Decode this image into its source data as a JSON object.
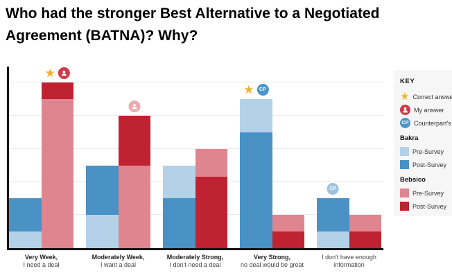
{
  "title": {
    "line1": "Who had the stronger Best Alternative to a Negotiated",
    "line2": "Agreement (BATNA)? Why?"
  },
  "legend": {
    "title": "KEY",
    "answer_markers": [
      {
        "icon": "star-icon",
        "label": "Correct answer",
        "color": "#f2b02c"
      },
      {
        "icon": "my-answer-icon",
        "label": "My answer",
        "color": "#cf3a46"
      },
      {
        "icon": "counterpart-icon",
        "label": "Counterpart's",
        "color": "#4e95c8"
      }
    ],
    "teams": [
      {
        "name": "Bakra",
        "items": [
          {
            "label": "Pre-Survey",
            "color": "#b3d1e8"
          },
          {
            "label": "Post-Survey",
            "color": "#4a91c5"
          }
        ]
      },
      {
        "name": "Bebsico",
        "items": [
          {
            "label": "Pre-Survey",
            "color": "#df8590"
          },
          {
            "label": "Post-Survey",
            "color": "#bf2231"
          }
        ]
      }
    ]
  },
  "chart_data": {
    "type": "bar",
    "title": "Who had the stronger Best Alternative to a Negotiated Agreement (BATNA)? Why?",
    "note": "Pre/post survey bars drawn overlaid (shorter bar in front); values estimated as % of axis height, no numeric axis labels shown",
    "categories": [
      {
        "line1": "Very Week,",
        "line2": "I need a deal",
        "bold_line1": true
      },
      {
        "line1": "Moderately Week,",
        "line2": "I want a deal",
        "bold_line1": true
      },
      {
        "line1": "Moderately Strong,",
        "line2": "I don't need a deal",
        "bold_line1": true
      },
      {
        "line1": "Very Strong,",
        "line2": "no deal would be great",
        "bold_line1": true
      },
      {
        "line1": "I don't have enough",
        "line2": "information",
        "bold_line1": false
      }
    ],
    "series": [
      {
        "name": "Bakra Pre-Survey",
        "color": "#b3d1e8",
        "values": [
          10,
          20,
          50,
          90,
          10
        ]
      },
      {
        "name": "Bakra Post-Survey",
        "color": "#4a91c5",
        "values": [
          30,
          50,
          30,
          70,
          30
        ]
      },
      {
        "name": "Bebsico Pre-Survey",
        "color": "#df8590",
        "values": [
          90,
          50,
          60,
          20,
          20
        ]
      },
      {
        "name": "Bebsico Post-Survey",
        "color": "#bf2231",
        "values": [
          100,
          80,
          43,
          10,
          10
        ]
      }
    ],
    "ylim": [
      0,
      100
    ],
    "gridlines": [
      20,
      40,
      60,
      80,
      100
    ],
    "legend_position": "right",
    "markers": [
      {
        "category": 0,
        "bar": "bebsico",
        "icons": [
          "star",
          "my-answer"
        ]
      },
      {
        "category": 1,
        "bar": "bebsico",
        "icons": [
          "my-answer-light"
        ]
      },
      {
        "category": 3,
        "bar": "bakra",
        "icons": [
          "star",
          "counterpart"
        ]
      },
      {
        "category": 4,
        "bar": "bakra",
        "icons": [
          "counterpart-light"
        ]
      }
    ],
    "marker_colors": {
      "star": "#f2b02c",
      "my-answer": "#cf3a46",
      "my-answer-light": "#eeaab0",
      "counterpart": "#4e95c8",
      "counterpart-light": "#9cc2de"
    }
  }
}
